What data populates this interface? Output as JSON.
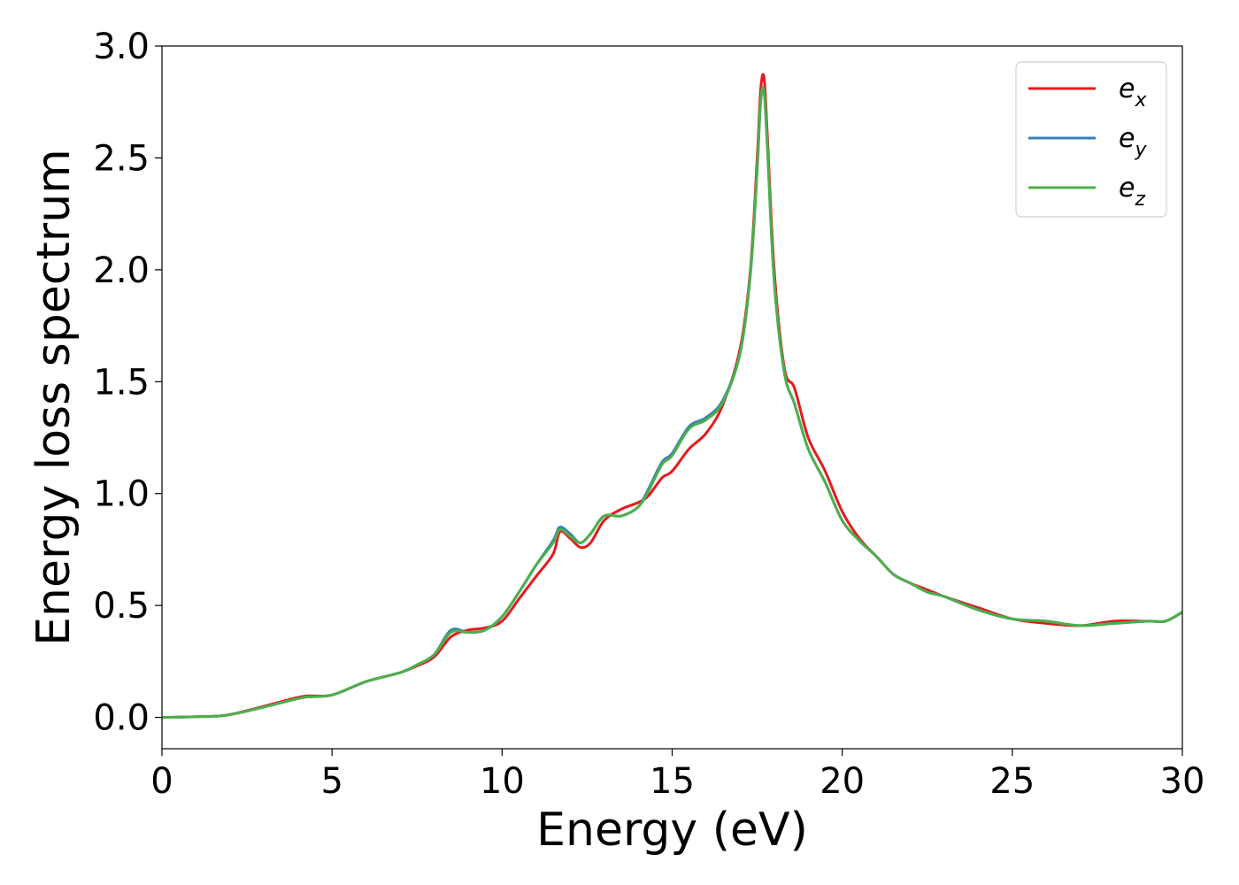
{
  "chart_data": {
    "type": "line",
    "title": "",
    "xlabel": "Energy (eV)",
    "ylabel": "Energy loss spectrum",
    "xlim": [
      0,
      30
    ],
    "ylim": [
      -0.14,
      3.0
    ],
    "xticks": [
      "0",
      "5",
      "10",
      "15",
      "20",
      "25",
      "30"
    ],
    "yticks": [
      "0.0",
      "0.5",
      "1.0",
      "1.5",
      "2.0",
      "2.5",
      "3.0"
    ],
    "grid": false,
    "legend_position": "top-right",
    "series": [
      {
        "name": "e",
        "subscript": "x",
        "color": "#e41a1c",
        "x": [
          0,
          1,
          1.8,
          2.5,
          3.5,
          4.2,
          5,
          6,
          7,
          7.5,
          8,
          8.5,
          9,
          9.5,
          10,
          10.5,
          11,
          11.5,
          11.7,
          12,
          12.3,
          12.6,
          13,
          13.5,
          14,
          14.3,
          14.7,
          15,
          15.5,
          16,
          16.5,
          17,
          17.3,
          17.5,
          17.6,
          17.7,
          17.8,
          18,
          18.3,
          18.6,
          19,
          19.5,
          20,
          20.5,
          21,
          21.5,
          22,
          22.5,
          23,
          24,
          25,
          26,
          27,
          28,
          29,
          29.5,
          30
        ],
        "y": [
          0,
          0.003,
          0.008,
          0.03,
          0.07,
          0.095,
          0.1,
          0.16,
          0.2,
          0.23,
          0.27,
          0.36,
          0.39,
          0.4,
          0.43,
          0.53,
          0.63,
          0.73,
          0.83,
          0.8,
          0.76,
          0.78,
          0.88,
          0.93,
          0.96,
          0.99,
          1.07,
          1.1,
          1.2,
          1.27,
          1.4,
          1.65,
          2.0,
          2.5,
          2.8,
          2.86,
          2.6,
          2.0,
          1.56,
          1.47,
          1.25,
          1.1,
          0.92,
          0.8,
          0.72,
          0.64,
          0.6,
          0.57,
          0.54,
          0.49,
          0.44,
          0.42,
          0.41,
          0.43,
          0.43,
          0.43,
          0.47
        ]
      },
      {
        "name": "e",
        "subscript": "y",
        "color": "#377eb8",
        "x": [
          0,
          1,
          1.8,
          2.5,
          3.5,
          4.2,
          5,
          6,
          7,
          7.5,
          8,
          8.5,
          9,
          9.5,
          10,
          10.5,
          11,
          11.5,
          11.7,
          12,
          12.3,
          12.6,
          13,
          13.5,
          14,
          14.3,
          14.7,
          15,
          15.5,
          16,
          16.5,
          17,
          17.3,
          17.5,
          17.6,
          17.7,
          17.8,
          18,
          18.3,
          18.6,
          19,
          19.5,
          20,
          20.5,
          21,
          21.5,
          22,
          22.5,
          23,
          24,
          25,
          26,
          27,
          28,
          29,
          29.5,
          30
        ],
        "y": [
          0,
          0.003,
          0.008,
          0.028,
          0.065,
          0.09,
          0.1,
          0.16,
          0.2,
          0.235,
          0.28,
          0.39,
          0.38,
          0.39,
          0.45,
          0.56,
          0.68,
          0.79,
          0.85,
          0.82,
          0.78,
          0.82,
          0.9,
          0.9,
          0.94,
          1.02,
          1.14,
          1.18,
          1.3,
          1.34,
          1.42,
          1.63,
          1.98,
          2.45,
          2.75,
          2.8,
          2.55,
          1.95,
          1.54,
          1.4,
          1.2,
          1.05,
          0.88,
          0.79,
          0.72,
          0.64,
          0.6,
          0.56,
          0.54,
          0.48,
          0.44,
          0.43,
          0.41,
          0.42,
          0.43,
          0.43,
          0.47
        ]
      },
      {
        "name": "e",
        "subscript": "z",
        "color": "#4daf4a",
        "x": [
          0,
          1,
          1.8,
          2.5,
          3.5,
          4.2,
          5,
          6,
          7,
          7.5,
          8,
          8.5,
          9,
          9.5,
          10,
          10.5,
          11,
          11.5,
          11.7,
          12,
          12.3,
          12.6,
          13,
          13.5,
          14,
          14.3,
          14.7,
          15,
          15.5,
          16,
          16.5,
          17,
          17.3,
          17.5,
          17.6,
          17.7,
          17.8,
          18,
          18.3,
          18.6,
          19,
          19.5,
          20,
          20.5,
          21,
          21.5,
          22,
          22.5,
          23,
          24,
          25,
          26,
          27,
          28,
          29,
          29.5,
          30
        ],
        "y": [
          0,
          0.003,
          0.008,
          0.028,
          0.065,
          0.09,
          0.1,
          0.16,
          0.2,
          0.235,
          0.28,
          0.38,
          0.38,
          0.39,
          0.45,
          0.56,
          0.68,
          0.78,
          0.84,
          0.81,
          0.78,
          0.82,
          0.9,
          0.9,
          0.94,
          1.01,
          1.13,
          1.17,
          1.29,
          1.33,
          1.41,
          1.63,
          1.98,
          2.45,
          2.75,
          2.8,
          2.55,
          1.95,
          1.54,
          1.4,
          1.2,
          1.05,
          0.88,
          0.79,
          0.72,
          0.64,
          0.6,
          0.56,
          0.54,
          0.48,
          0.44,
          0.43,
          0.41,
          0.42,
          0.43,
          0.43,
          0.47
        ]
      }
    ]
  }
}
